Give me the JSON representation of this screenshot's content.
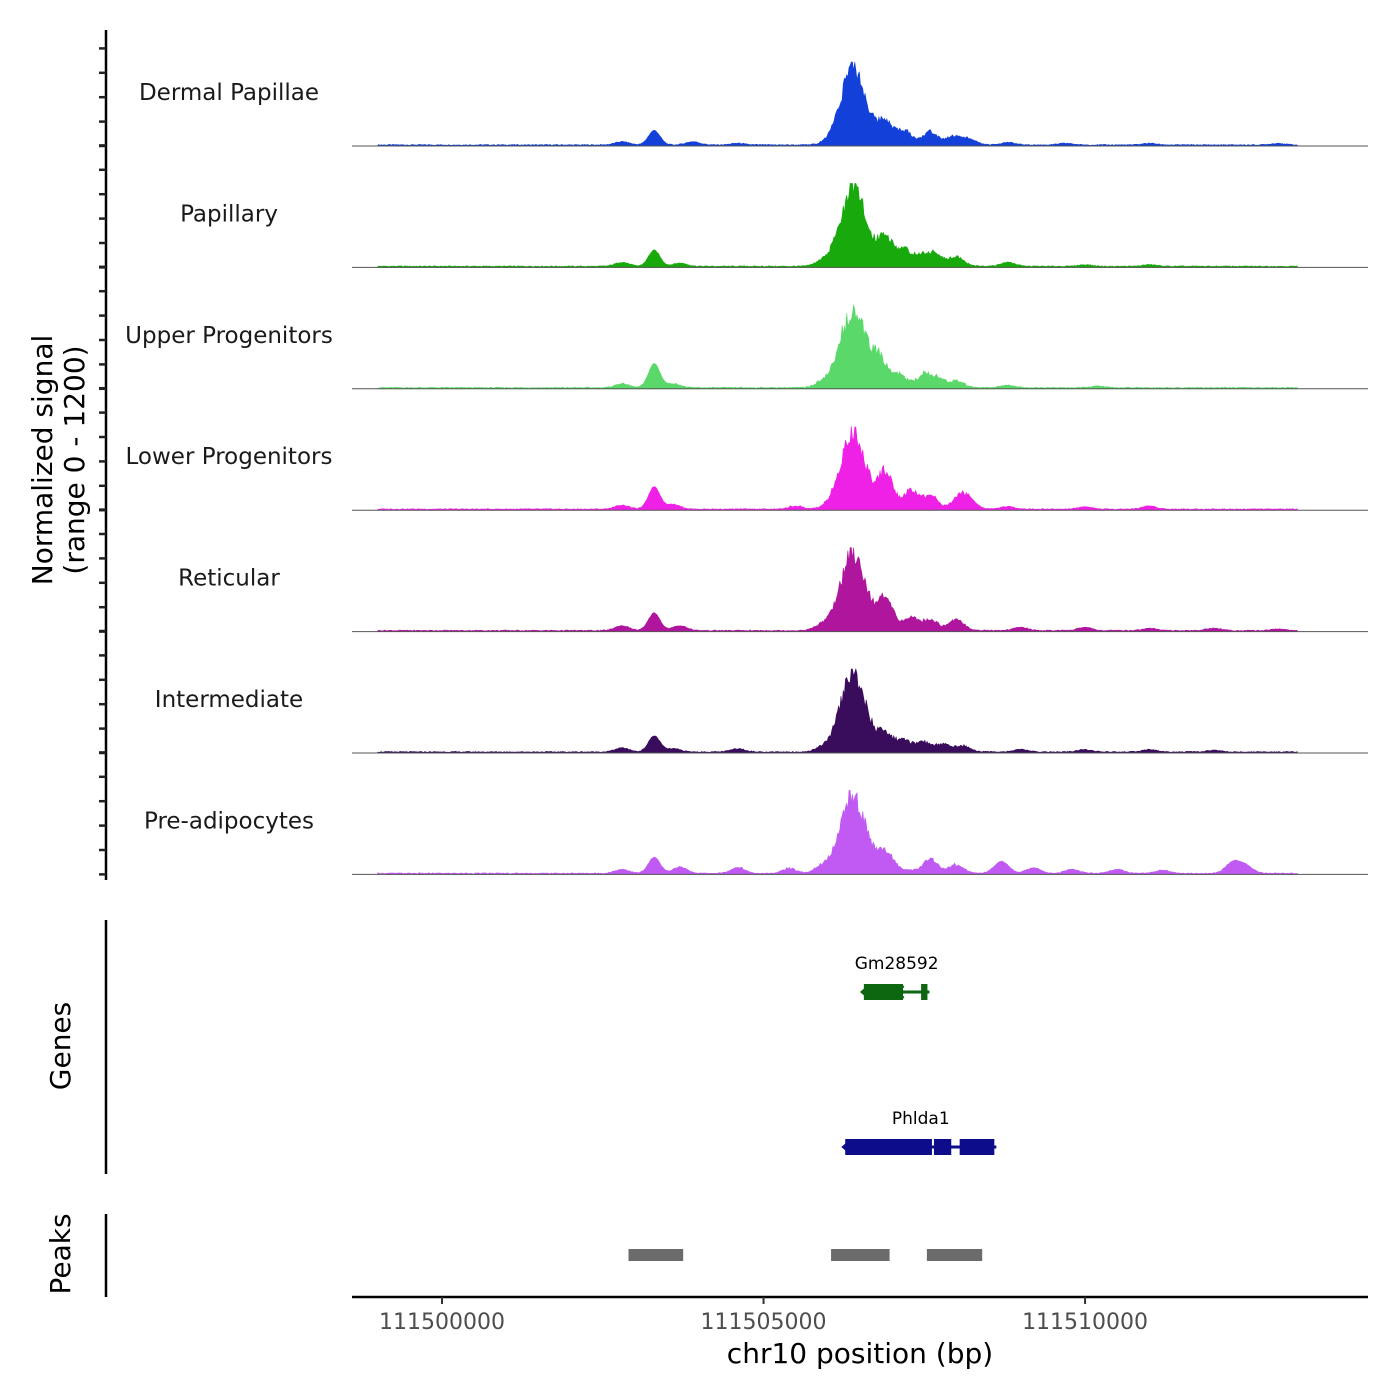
{
  "chart_data": {
    "type": "area",
    "title": "",
    "y_axis_title_line1": "Normalized signal",
    "y_axis_title_line2": "(range 0 - 1200)",
    "y_range": [
      0,
      1200
    ],
    "xlabel": "chr10 position (bp)",
    "x_range": [
      111498600,
      111514400
    ],
    "x_ticks": [
      111500000,
      111505000,
      111510000
    ],
    "x_tick_labels": [
      "111500000",
      "111505000",
      "111510000"
    ],
    "peak_center": 111506400,
    "tracks": [
      {
        "name": "Dermal Papillae",
        "color": "#1240d9",
        "max": 0.98,
        "left_peak": 0.18,
        "bumps": [
          [
            111502800,
            0.04
          ],
          [
            111506900,
            0.22
          ],
          [
            111507200,
            0.13
          ],
          [
            111507600,
            0.15
          ],
          [
            111507950,
            0.1
          ],
          [
            111508200,
            0.07
          ],
          [
            111503900,
            0.04
          ],
          [
            111504600,
            0.02
          ],
          [
            111508800,
            0.03
          ],
          [
            111509700,
            0.02
          ],
          [
            111511000,
            0.02
          ],
          [
            111513000,
            0.02
          ]
        ]
      },
      {
        "name": "Papillary",
        "color": "#18aa0c",
        "max": 1.0,
        "left_peak": 0.2,
        "bumps": [
          [
            111502800,
            0.05
          ],
          [
            111506900,
            0.3
          ],
          [
            111507200,
            0.17
          ],
          [
            111507500,
            0.12
          ],
          [
            111507700,
            0.12
          ],
          [
            111508000,
            0.11
          ],
          [
            111503700,
            0.04
          ],
          [
            111505900,
            0.05
          ],
          [
            111508800,
            0.05
          ],
          [
            111510000,
            0.02
          ],
          [
            111511000,
            0.02
          ]
        ]
      },
      {
        "name": "Upper Progenitors",
        "color": "#5ad96a",
        "max": 1.0,
        "left_peak": 0.3,
        "bumps": [
          [
            111502800,
            0.05
          ],
          [
            111506800,
            0.25
          ],
          [
            111507100,
            0.12
          ],
          [
            111507500,
            0.14
          ],
          [
            111507700,
            0.1
          ],
          [
            111508000,
            0.08
          ],
          [
            111503600,
            0.05
          ],
          [
            111505900,
            0.06
          ],
          [
            111508800,
            0.03
          ],
          [
            111510200,
            0.02
          ]
        ]
      },
      {
        "name": "Lower Progenitors",
        "color": "#f021e6",
        "max": 0.95,
        "left_peak": 0.28,
        "bumps": [
          [
            111502800,
            0.05
          ],
          [
            111506900,
            0.38
          ],
          [
            111507300,
            0.2
          ],
          [
            111507600,
            0.15
          ],
          [
            111508050,
            0.15
          ],
          [
            111508200,
            0.1
          ],
          [
            111503600,
            0.06
          ],
          [
            111505500,
            0.04
          ],
          [
            111508800,
            0.03
          ],
          [
            111510000,
            0.03
          ],
          [
            111511000,
            0.04
          ]
        ]
      },
      {
        "name": "Reticular",
        "color": "#b0159e",
        "max": 1.0,
        "left_peak": 0.22,
        "bumps": [
          [
            111502800,
            0.06
          ],
          [
            111506900,
            0.3
          ],
          [
            111507300,
            0.13
          ],
          [
            111507600,
            0.12
          ],
          [
            111508000,
            0.14
          ],
          [
            111505900,
            0.06
          ],
          [
            111503700,
            0.06
          ],
          [
            111509000,
            0.04
          ],
          [
            111510000,
            0.04
          ],
          [
            111511000,
            0.03
          ],
          [
            111512000,
            0.03
          ],
          [
            111513000,
            0.02
          ]
        ]
      },
      {
        "name": "Intermediate",
        "color": "#3a0c5c",
        "max": 1.0,
        "left_peak": 0.2,
        "bumps": [
          [
            111502800,
            0.05
          ],
          [
            111506900,
            0.15
          ],
          [
            111507200,
            0.1
          ],
          [
            111507500,
            0.1
          ],
          [
            111507800,
            0.09
          ],
          [
            111508100,
            0.07
          ],
          [
            111503600,
            0.04
          ],
          [
            111504600,
            0.04
          ],
          [
            111505900,
            0.04
          ],
          [
            111509000,
            0.03
          ],
          [
            111510000,
            0.03
          ],
          [
            111511000,
            0.03
          ],
          [
            111512000,
            0.02
          ]
        ]
      },
      {
        "name": "Pre-adipocytes",
        "color": "#c05af2",
        "max": 1.0,
        "left_peak": 0.2,
        "bumps": [
          [
            111502800,
            0.05
          ],
          [
            111503700,
            0.08
          ],
          [
            111504600,
            0.07
          ],
          [
            111505400,
            0.06
          ],
          [
            111505900,
            0.08
          ],
          [
            111506900,
            0.18
          ],
          [
            111507600,
            0.16
          ],
          [
            111508000,
            0.1
          ],
          [
            111508700,
            0.15
          ],
          [
            111509200,
            0.07
          ],
          [
            111509800,
            0.05
          ],
          [
            111510500,
            0.05
          ],
          [
            111511200,
            0.04
          ],
          [
            111512300,
            0.14
          ],
          [
            111512500,
            0.09
          ]
        ]
      }
    ],
    "genes_label": "Genes",
    "genes": [
      {
        "name": "Gm28592",
        "color": "#0d6610",
        "strand": "-",
        "start": 111506560,
        "end": 111507580,
        "exons": [
          [
            111506560,
            111507200
          ],
          [
            111507450,
            111507580
          ]
        ]
      },
      {
        "name": "Phlda1",
        "color": "#0d0d8c",
        "strand": "-",
        "start": 111506270,
        "end": 111508620,
        "exons": [
          [
            111506270,
            111507650
          ],
          [
            111507650,
            111507950
          ],
          [
            111508050,
            111508620
          ]
        ]
      }
    ],
    "peaks_label": "Peaks",
    "peaks_color": "#6b6b6b",
    "peaks": [
      [
        111502900,
        111503750
      ],
      [
        111506050,
        111506960
      ],
      [
        111507540,
        111508400
      ]
    ]
  }
}
